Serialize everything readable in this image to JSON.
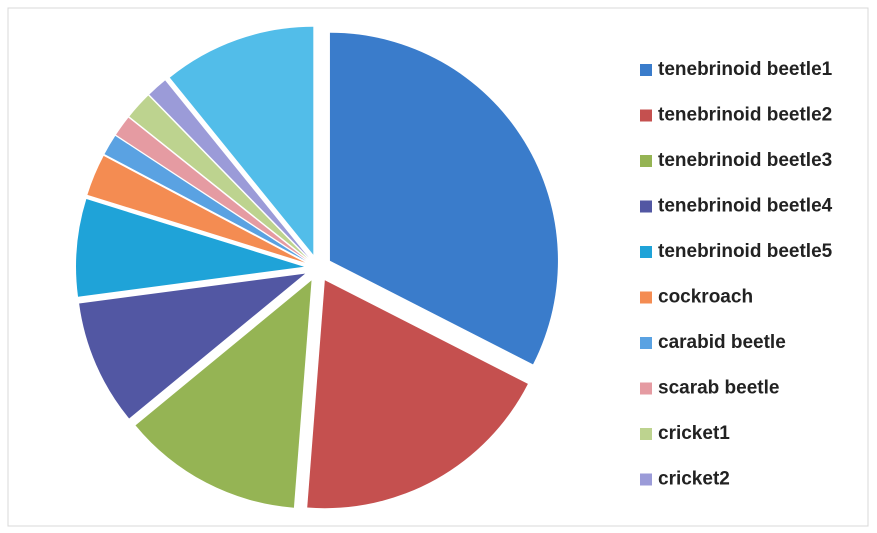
{
  "chart_data": {
    "type": "pie",
    "categories": [
      "tenebrinoid beetle1",
      "tenebrinoid beetle2",
      "tenebrinoid beetle3",
      "tenebrinoid beetle4",
      "tenebrinoid beetle5",
      "cockroach",
      "carabid beetle",
      "scarab beetle",
      "cricket1",
      "cricket2",
      null
    ],
    "values": [
      33,
      19,
      13,
      9,
      7,
      3,
      1.5,
      1.5,
      2,
      1.5,
      11
    ],
    "colors": [
      "#3a7ccb",
      "#c5504f",
      "#95b454",
      "#5257a3",
      "#1fa3d8",
      "#f48c52",
      "#5aa2e2",
      "#e59ba2",
      "#bdd38f",
      "#9b9bd8",
      "#52bde9"
    ]
  }
}
